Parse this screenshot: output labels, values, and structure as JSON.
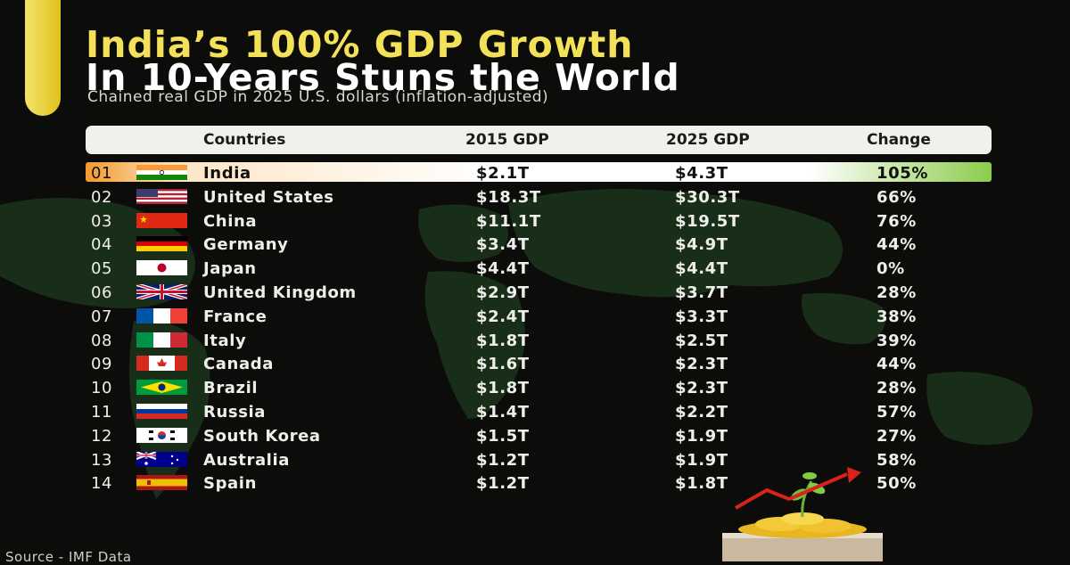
{
  "title_line1": "India’s 100% GDP Growth",
  "title_line2": "In 10-Years Stuns the World",
  "subtitle": "Chained real GDP in 2025 U.S. dollars (inflation-adjusted)",
  "source": "Source - IMF Data",
  "colors": {
    "background": "#0c0c0a",
    "title_accent": "#f3e15a",
    "header_bg": "#f0f0ec",
    "highlight_start": "#f29a2c",
    "highlight_end": "#8ccc4c"
  },
  "chart_data": {
    "type": "table",
    "columns": [
      "Countries",
      "2015 GDP",
      "2025 GDP",
      "Change"
    ],
    "highlighted_row": 0,
    "rows": [
      {
        "rank": "01",
        "flag": "india-flag",
        "country": "India",
        "gdp_2015": "$2.1T",
        "gdp_2025": "$4.3T",
        "change": "105%"
      },
      {
        "rank": "02",
        "flag": "united-states-flag",
        "country": "United States",
        "gdp_2015": "$18.3T",
        "gdp_2025": "$30.3T",
        "change": "66%"
      },
      {
        "rank": "03",
        "flag": "china-flag",
        "country": "China",
        "gdp_2015": "$11.1T",
        "gdp_2025": "$19.5T",
        "change": "76%"
      },
      {
        "rank": "04",
        "flag": "germany-flag",
        "country": "Germany",
        "gdp_2015": "$3.4T",
        "gdp_2025": "$4.9T",
        "change": "44%"
      },
      {
        "rank": "05",
        "flag": "japan-flag",
        "country": "Japan",
        "gdp_2015": "$4.4T",
        "gdp_2025": "$4.4T",
        "change": "0%"
      },
      {
        "rank": "06",
        "flag": "united-kingdom-flag",
        "country": "United Kingdom",
        "gdp_2015": "$2.9T",
        "gdp_2025": "$3.7T",
        "change": "28%"
      },
      {
        "rank": "07",
        "flag": "france-flag",
        "country": "France",
        "gdp_2015": "$2.4T",
        "gdp_2025": "$3.3T",
        "change": "38%"
      },
      {
        "rank": "08",
        "flag": "italy-flag",
        "country": "Italy",
        "gdp_2015": "$1.8T",
        "gdp_2025": "$2.5T",
        "change": "39%"
      },
      {
        "rank": "09",
        "flag": "canada-flag",
        "country": "Canada",
        "gdp_2015": "$1.6T",
        "gdp_2025": "$2.3T",
        "change": "44%"
      },
      {
        "rank": "10",
        "flag": "brazil-flag",
        "country": "Brazil",
        "gdp_2015": "$1.8T",
        "gdp_2025": "$2.3T",
        "change": "28%"
      },
      {
        "rank": "11",
        "flag": "russia-flag",
        "country": "Russia",
        "gdp_2015": "$1.4T",
        "gdp_2025": "$2.2T",
        "change": "57%"
      },
      {
        "rank": "12",
        "flag": "south-korea-flag",
        "country": "South Korea",
        "gdp_2015": "$1.5T",
        "gdp_2025": "$1.9T",
        "change": "27%"
      },
      {
        "rank": "13",
        "flag": "australia-flag",
        "country": "Australia",
        "gdp_2015": "$1.2T",
        "gdp_2025": "$1.9T",
        "change": "58%"
      },
      {
        "rank": "14",
        "flag": "spain-flag",
        "country": "Spain",
        "gdp_2015": "$1.2T",
        "gdp_2025": "$1.8T",
        "change": "50%"
      }
    ]
  }
}
